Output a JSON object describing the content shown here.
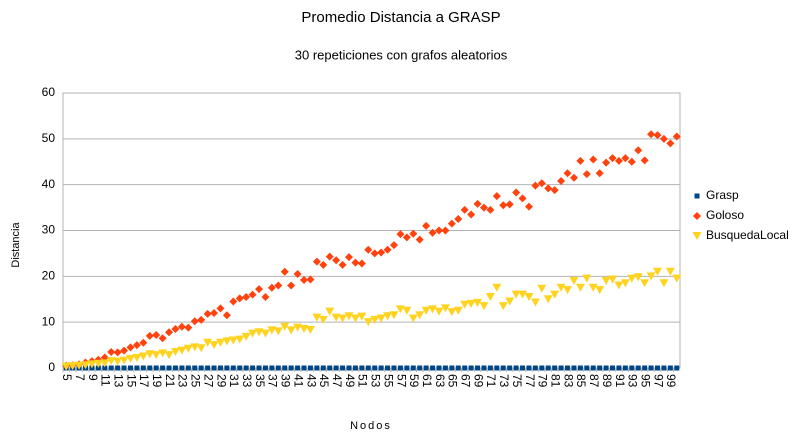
{
  "chart_data": {
    "type": "scatter",
    "title": "Promedio Distancia a GRASP",
    "subtitle": "30 repeticiones con grafos aleatorios",
    "x_label": "Nodos",
    "y_label": "Distancia",
    "categories": [
      "5",
      null,
      "7",
      null,
      "9",
      null,
      "11",
      null,
      "13",
      null,
      "15",
      null,
      "17",
      null,
      "19",
      null,
      "21",
      null,
      "23",
      null,
      "25",
      null,
      "27",
      null,
      "29",
      null,
      "31",
      null,
      "33",
      null,
      "35",
      null,
      "37",
      null,
      "39",
      null,
      "41",
      null,
      "43",
      null,
      "45",
      null,
      "47",
      null,
      "49",
      null,
      "51",
      null,
      "53",
      null,
      "55",
      null,
      "57",
      null,
      "59",
      null,
      "61",
      null,
      "63",
      null,
      "65",
      null,
      "67",
      null,
      "69",
      null,
      "71",
      null,
      "73",
      null,
      "75",
      null,
      "77",
      null,
      "79",
      null,
      "81",
      null,
      "83",
      null,
      "85",
      null,
      "87",
      null,
      "89",
      null,
      "91",
      null,
      "93",
      null,
      "95",
      null,
      "97",
      null,
      "99",
      null
    ],
    "series": [
      {
        "name": "Grasp",
        "color": "#004586",
        "marker": "square",
        "values": [
          0,
          0,
          0,
          0,
          0,
          0,
          0,
          0,
          0,
          0,
          0,
          0,
          0,
          0,
          0,
          0,
          0,
          0,
          0,
          0,
          0,
          0,
          0,
          0,
          0,
          0,
          0,
          0,
          0,
          0,
          0,
          0,
          0,
          0,
          0,
          0,
          0,
          0,
          0,
          0,
          0,
          0,
          0,
          0,
          0,
          0,
          0,
          0,
          0,
          0,
          0,
          0,
          0,
          0,
          0,
          0,
          0,
          0,
          0,
          0,
          0,
          0,
          0,
          0,
          0,
          0,
          0,
          0,
          0,
          0,
          0,
          0,
          0,
          0,
          0,
          0,
          0,
          0,
          0,
          0,
          0,
          0,
          0,
          0,
          0,
          0,
          0,
          0,
          0,
          0,
          0,
          0,
          0,
          0,
          0,
          0
        ]
      },
      {
        "name": "Goloso",
        "color": "#ff420e",
        "marker": "diamond",
        "values": [
          0.5,
          0.6,
          0.8,
          1.2,
          1.5,
          1.8,
          2.3,
          3.5,
          3.4,
          3.8,
          4.5,
          5.0,
          5.5,
          7.0,
          7.2,
          6.5,
          7.8,
          8.5,
          9.0,
          8.8,
          10.2,
          10.5,
          11.8,
          12.0,
          13.0,
          11.5,
          14.5,
          15.2,
          15.5,
          16.0,
          17.2,
          15.5,
          17.5,
          18.0,
          21.0,
          18.0,
          20.5,
          19.2,
          19.3,
          23.2,
          22.5,
          24.3,
          23.5,
          22.5,
          24.2,
          23.0,
          22.8,
          25.8,
          25.0,
          25.2,
          25.8,
          26.8,
          29.2,
          28.5,
          29.3,
          28.0,
          31.0,
          29.5,
          30.0,
          30.0,
          31.5,
          32.5,
          34.5,
          33.5,
          35.8,
          35.0,
          34.5,
          37.5,
          35.5,
          35.7,
          38.3,
          37.0,
          35.2,
          39.8,
          40.3,
          39.2,
          38.8,
          40.8,
          42.5,
          41.5,
          45.2,
          42.3,
          45.5,
          42.5,
          44.8,
          45.8,
          45.2,
          45.8,
          45.0,
          47.5,
          45.3,
          51.0,
          50.8,
          50.0,
          49.0,
          50.5
        ]
      },
      {
        "name": "BusquedaLocal",
        "color": "#ffd320",
        "marker": "triangle-down",
        "values": [
          0.3,
          0.4,
          0.5,
          0.6,
          0.8,
          0.9,
          1.0,
          1.5,
          1.4,
          1.6,
          2.0,
          2.2,
          2.5,
          3.0,
          2.8,
          3.2,
          2.8,
          3.5,
          3.8,
          4.2,
          4.5,
          4.3,
          5.5,
          5.0,
          5.5,
          5.8,
          6.0,
          6.2,
          6.8,
          7.5,
          7.8,
          7.5,
          8.2,
          8.0,
          9.0,
          8.2,
          8.8,
          8.5,
          8.3,
          11.0,
          10.5,
          12.3,
          11.0,
          10.8,
          11.3,
          10.8,
          11.2,
          10.0,
          10.5,
          10.8,
          11.3,
          11.5,
          12.8,
          12.5,
          10.8,
          11.5,
          12.5,
          12.8,
          12.3,
          13.0,
          12.2,
          12.5,
          13.8,
          14.0,
          14.2,
          13.5,
          15.5,
          17.5,
          13.5,
          14.5,
          16.0,
          16.0,
          15.5,
          14.3,
          17.3,
          15.0,
          16.0,
          17.5,
          17.0,
          19.0,
          17.5,
          19.5,
          17.5,
          17.0,
          19.0,
          19.3,
          18.0,
          18.5,
          19.5,
          19.8,
          18.5,
          20.0,
          21.0,
          18.5,
          21.0,
          19.5
        ]
      }
    ],
    "ylim": [
      0,
      60
    ],
    "yticks": [
      0,
      10,
      20,
      30,
      40,
      50,
      60
    ],
    "grid": true,
    "legend": "right"
  }
}
